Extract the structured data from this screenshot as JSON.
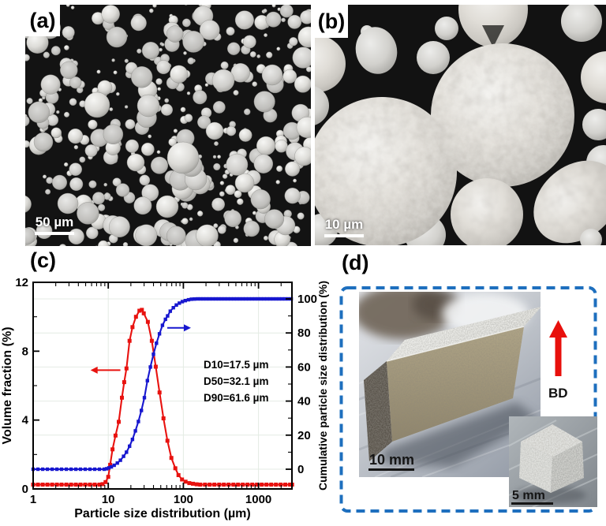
{
  "panels": {
    "a": {
      "label": "(a)",
      "scale_bar_text": "50 µm"
    },
    "b": {
      "label": "(b)",
      "scale_bar_text": "10 µm"
    },
    "c": {
      "label": "(c)"
    },
    "d": {
      "label": "(d)",
      "scale_bar_main": "10 mm",
      "scale_bar_inset": "5 mm",
      "bd_label": "BD"
    }
  },
  "colors": {
    "volume_series": "#e8120f",
    "cumulative_series": "#1717cf",
    "dashed_border": "#1e6fbe",
    "bd_arrow": "#e8100c",
    "grid": "#e4ebe4",
    "sem_background": "#131313"
  },
  "chart_data": {
    "type": "line",
    "x_axis": {
      "label": "Particle size distribution (µm)",
      "scale": "log",
      "min": 1,
      "max": 2800,
      "major_ticks": [
        1,
        10,
        100,
        1000
      ]
    },
    "y_left": {
      "label": "Volume fraction (%)",
      "min": 0,
      "max": 12,
      "major_ticks": [
        0,
        4,
        8,
        12
      ],
      "minor_ticks": [
        2,
        6,
        10
      ]
    },
    "y_right": {
      "label": "Cumulative particle size distribution (%)",
      "min": 0,
      "max": 100,
      "major_ticks": [
        0,
        20,
        40,
        60,
        80,
        100
      ],
      "minor_ticks": [
        10,
        30,
        50,
        70,
        90
      ]
    },
    "annotations": [
      "D10=17.5 µm",
      "D50=32.1 µm",
      "D90=61.6 µm"
    ],
    "legend_position": "none",
    "grid": true,
    "series": [
      {
        "name": "volume-fraction",
        "axis": "left",
        "color": "#e8120f",
        "marker": "square",
        "marker_size": 5,
        "points": [
          [
            1,
            0.25
          ],
          [
            1.16,
            0.25
          ],
          [
            1.34,
            0.25
          ],
          [
            1.55,
            0.25
          ],
          [
            1.79,
            0.25
          ],
          [
            2.07,
            0.25
          ],
          [
            2.39,
            0.25
          ],
          [
            2.77,
            0.25
          ],
          [
            3.2,
            0.25
          ],
          [
            3.7,
            0.25
          ],
          [
            4.27,
            0.25
          ],
          [
            4.94,
            0.25
          ],
          [
            5.71,
            0.25
          ],
          [
            6.6,
            0.25
          ],
          [
            7.63,
            0.25
          ],
          [
            8.4,
            0.28
          ],
          [
            9.2,
            0.4
          ],
          [
            10,
            0.7
          ],
          [
            10.6,
            1.4
          ],
          [
            11.4,
            2.3
          ],
          [
            12.5,
            3.1
          ],
          [
            13.8,
            3.9
          ],
          [
            15.2,
            5.3
          ],
          [
            16.3,
            6.2
          ],
          [
            17.5,
            7.0
          ],
          [
            19.2,
            8.6
          ],
          [
            21,
            9.4
          ],
          [
            23.4,
            10.0
          ],
          [
            26,
            10.35
          ],
          [
            28,
            10.4
          ],
          [
            29.7,
            10.2
          ],
          [
            33.7,
            9.7
          ],
          [
            38,
            8.6
          ],
          [
            42.9,
            7.1
          ],
          [
            48.2,
            5.6
          ],
          [
            54.4,
            4.1
          ],
          [
            61.4,
            2.8
          ],
          [
            69.3,
            1.8
          ],
          [
            78.2,
            1.2
          ],
          [
            86,
            0.8
          ],
          [
            96,
            0.55
          ],
          [
            107,
            0.42
          ],
          [
            120,
            0.34
          ],
          [
            134,
            0.3
          ],
          [
            150,
            0.27
          ],
          [
            168,
            0.25
          ],
          [
            194,
            0.25
          ],
          [
            224,
            0.25
          ],
          [
            259,
            0.25
          ],
          [
            300,
            0.25
          ],
          [
            346,
            0.25
          ],
          [
            400,
            0.25
          ],
          [
            463,
            0.25
          ],
          [
            535,
            0.25
          ],
          [
            618,
            0.25
          ],
          [
            715,
            0.25
          ],
          [
            826,
            0.25
          ],
          [
            955,
            0.25
          ],
          [
            1104,
            0.25
          ],
          [
            1276,
            0.25
          ],
          [
            1475,
            0.25
          ],
          [
            1705,
            0.25
          ],
          [
            1971,
            0.25
          ],
          [
            2278,
            0.25
          ],
          [
            2633,
            0.25
          ],
          [
            2800,
            0.25
          ]
        ]
      },
      {
        "name": "cumulative-distribution",
        "axis": "right",
        "color": "#1717cf",
        "marker": "square",
        "marker_size": 4.4,
        "points": [
          [
            1,
            0
          ],
          [
            1.16,
            0
          ],
          [
            1.34,
            0
          ],
          [
            1.55,
            0
          ],
          [
            1.79,
            0
          ],
          [
            2.07,
            0
          ],
          [
            2.39,
            0
          ],
          [
            2.77,
            0
          ],
          [
            3.2,
            0
          ],
          [
            3.7,
            0
          ],
          [
            4.27,
            0
          ],
          [
            4.94,
            0
          ],
          [
            5.71,
            0
          ],
          [
            6.6,
            0
          ],
          [
            7.63,
            0
          ],
          [
            8.82,
            0
          ],
          [
            9.5,
            0.3
          ],
          [
            10.2,
            0.8
          ],
          [
            11,
            1.4
          ],
          [
            12,
            2.3
          ],
          [
            13.2,
            3.6
          ],
          [
            14.5,
            5.3
          ],
          [
            16,
            7.6
          ],
          [
            17.5,
            10
          ],
          [
            19.2,
            13.5
          ],
          [
            21,
            17.5
          ],
          [
            23,
            22.5
          ],
          [
            25.2,
            28
          ],
          [
            27.6,
            34.5
          ],
          [
            30.3,
            42
          ],
          [
            33.2,
            52
          ],
          [
            36.4,
            60
          ],
          [
            40,
            67.5
          ],
          [
            43.8,
            74
          ],
          [
            48,
            79.5
          ],
          [
            52.7,
            84.5
          ],
          [
            57.8,
            88
          ],
          [
            61.6,
            90
          ],
          [
            67,
            92.8
          ],
          [
            73.5,
            94.8
          ],
          [
            80.6,
            96.4
          ],
          [
            88.4,
            97.5
          ],
          [
            97,
            98.4
          ],
          [
            106,
            99
          ],
          [
            117,
            99.5
          ],
          [
            128,
            99.8
          ],
          [
            140,
            99.9
          ],
          [
            154,
            100
          ],
          [
            169,
            100
          ],
          [
            185,
            100
          ],
          [
            203,
            100
          ],
          [
            223,
            100
          ],
          [
            245,
            100
          ],
          [
            269,
            100
          ],
          [
            295,
            100
          ],
          [
            323,
            100
          ],
          [
            355,
            100
          ],
          [
            389,
            100
          ],
          [
            427,
            100
          ],
          [
            469,
            100
          ],
          [
            514,
            100
          ],
          [
            564,
            100
          ],
          [
            619,
            100
          ],
          [
            679,
            100
          ],
          [
            745,
            100
          ],
          [
            818,
            100
          ],
          [
            897,
            100
          ],
          [
            984,
            100
          ],
          [
            1080,
            100
          ],
          [
            1185,
            100
          ],
          [
            1300,
            100
          ],
          [
            1426,
            100
          ],
          [
            1565,
            100
          ],
          [
            1717,
            100
          ],
          [
            1884,
            100
          ],
          [
            2067,
            100
          ],
          [
            2268,
            100
          ],
          [
            2489,
            100
          ],
          [
            2731,
            100
          ]
        ]
      }
    ],
    "arrows": [
      {
        "name": "volume-fraction-arrow",
        "color": "#e8120f",
        "axis": "left",
        "direction": "left",
        "from": [
          14.5,
          6.9
        ],
        "to": [
          5.8,
          6.9
        ]
      },
      {
        "name": "cumulative-arrow",
        "color": "#1717cf",
        "axis": "right",
        "direction": "right",
        "from": [
          61,
          83
        ],
        "to": [
          126,
          83
        ]
      }
    ]
  }
}
